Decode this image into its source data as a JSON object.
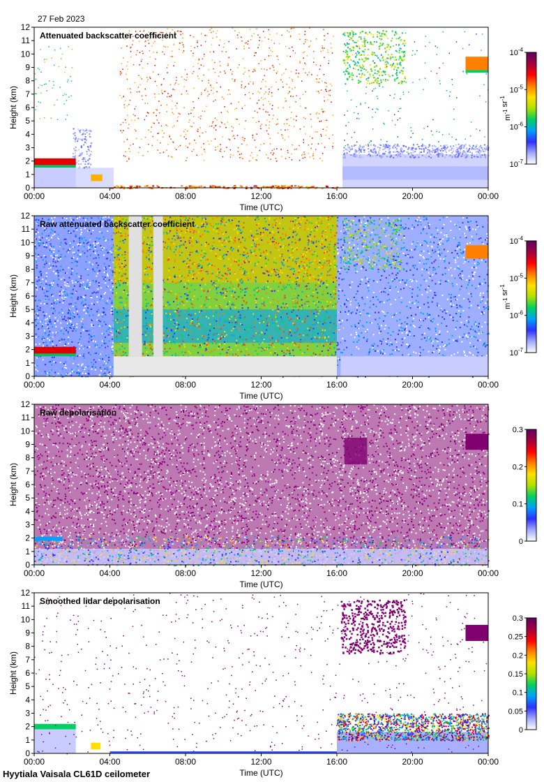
{
  "date": "27 Feb 2023",
  "footer": "Hyytiala Vaisala CL61D ceilometer",
  "chart_data": [
    {
      "type": "heatmap",
      "title": "Attenuated backscatter coefficient",
      "xlabel": "Time (UTC)",
      "ylabel": "Height (km)",
      "xticks": [
        "00:00",
        "04:00",
        "08:00",
        "12:00",
        "16:00",
        "20:00",
        "00:00"
      ],
      "xlim_hours": [
        0,
        24
      ],
      "ylim": [
        0,
        12
      ],
      "yticks": [
        0,
        1,
        2,
        3,
        4,
        5,
        6,
        7,
        8,
        9,
        10,
        11,
        12
      ],
      "colorbar": {
        "scale": "log",
        "units": "m^-1 sr^-1",
        "ticks": [
          "10^-4",
          "10^-5",
          "10^-6",
          "10^-7"
        ],
        "colormap": [
          "#ffffff",
          "#a0a8ff",
          "#3030ff",
          "#00a0ff",
          "#00d060",
          "#b0e000",
          "#ffe000",
          "#ff8000",
          "#ff0000",
          "#a00040",
          "#600060"
        ]
      },
      "features": [
        {
          "desc": "low cloud",
          "t_start_h": 0.0,
          "t_end_h": 2.0,
          "h_km": [
            1.6,
            2.3
          ]
        },
        {
          "desc": "high cloud",
          "t_start_h": 16.2,
          "t_end_h": 19.5,
          "h_km": [
            8.0,
            11.7
          ]
        },
        {
          "desc": "high cloud",
          "t_start_h": 22.8,
          "t_end_h": 24.0,
          "h_km": [
            8.6,
            9.9
          ]
        }
      ]
    },
    {
      "type": "heatmap",
      "title": "Raw attenuated backscatter coefficient",
      "xlabel": "Time (UTC)",
      "ylabel": "Height (km)",
      "xticks": [
        "00:00",
        "04:00",
        "08:00",
        "12:00",
        "16:00",
        "20:00",
        "00:00"
      ],
      "xlim_hours": [
        0,
        24
      ],
      "ylim": [
        0,
        12
      ],
      "yticks": [
        0,
        1,
        2,
        3,
        4,
        5,
        6,
        7,
        8,
        9,
        10,
        11,
        12
      ],
      "colorbar": {
        "scale": "log",
        "units": "m^-1 sr^-1",
        "ticks": [
          "10^-4",
          "10^-5",
          "10^-6",
          "10^-7"
        ],
        "colormap": [
          "#ffffff",
          "#a0a8ff",
          "#3030ff",
          "#00a0ff",
          "#00d060",
          "#b0e000",
          "#ffe000",
          "#ff8000",
          "#ff0000",
          "#a00040",
          "#600060"
        ]
      }
    },
    {
      "type": "heatmap",
      "title": "Raw depolarisation",
      "xlabel": "Time (UTC)",
      "ylabel": "Height (km)",
      "xticks": [
        "00:00",
        "04:00",
        "08:00",
        "12:00",
        "16:00",
        "20:00",
        "00:00"
      ],
      "xlim_hours": [
        0,
        24
      ],
      "ylim": [
        0,
        12
      ],
      "yticks": [
        0,
        1,
        2,
        3,
        4,
        5,
        6,
        7,
        8,
        9,
        10,
        11,
        12
      ],
      "colorbar": {
        "scale": "linear",
        "units": "",
        "ticks": [
          "0.3",
          "0.2",
          "0.1",
          "0"
        ],
        "colormap": [
          "#ffffff",
          "#a0a8ff",
          "#3030ff",
          "#00a0ff",
          "#00d060",
          "#b0e000",
          "#ffe000",
          "#ff8000",
          "#ff0000",
          "#a00040",
          "#600060"
        ]
      }
    },
    {
      "type": "heatmap",
      "title": "Smoothed lidar depolarisation",
      "xlabel": "Time (UTC)",
      "ylabel": "Height (km)",
      "xticks": [
        "00:00",
        "04:00",
        "08:00",
        "12:00",
        "16:00",
        "20:00",
        "00:00"
      ],
      "xlim_hours": [
        0,
        24
      ],
      "ylim": [
        0,
        12
      ],
      "yticks": [
        0,
        1,
        2,
        3,
        4,
        5,
        6,
        7,
        8,
        9,
        10,
        11,
        12
      ],
      "colorbar": {
        "scale": "linear",
        "units": "",
        "ticks": [
          "0.3",
          "0.25",
          "0.2",
          "0.15",
          "0.1",
          "0.05",
          "0"
        ],
        "colormap": [
          "#ffffff",
          "#a0a8ff",
          "#3030ff",
          "#00a0ff",
          "#00d060",
          "#b0e000",
          "#ffe000",
          "#ff8000",
          "#ff0000",
          "#a00040",
          "#600060"
        ]
      }
    }
  ]
}
